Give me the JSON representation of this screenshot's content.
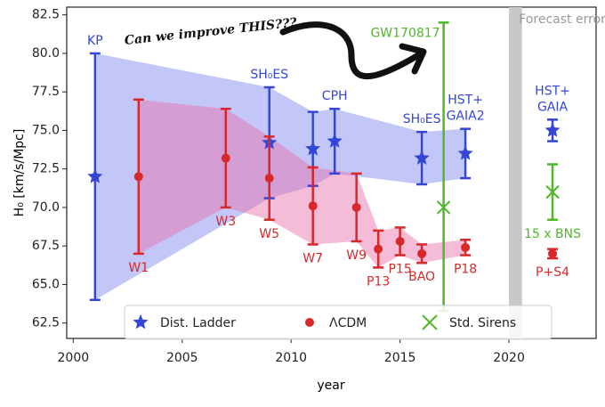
{
  "chart_data": {
    "type": "errorbar",
    "x_label": "year",
    "y_label": "H₀ [km/s/Mpc]",
    "xlim": [
      1999.7,
      2024
    ],
    "ylim": [
      61.5,
      83
    ],
    "xticks": [
      2000,
      2005,
      2010,
      2015,
      2020
    ],
    "yticks": [
      62.5,
      {
        "value": 65,
        "label": "65.0"
      },
      67.5,
      {
        "value": 70,
        "label": "70.0"
      },
      72.5,
      {
        "value": 75,
        "label": "75.0"
      },
      77.5,
      {
        "value": 80,
        "label": "80.0"
      },
      82.5
    ],
    "annotation": "Can we improve THIS???",
    "forecast_label": "Forecast errors",
    "series": [
      {
        "name": "Dist. Ladder",
        "color": "#3346d6",
        "marker": "star",
        "band_color": "#7b83f0",
        "x": [
          2001,
          2009,
          2011,
          2012,
          2016,
          2018,
          2022
        ],
        "values": [
          72,
          74.2,
          73.8,
          74.3,
          73.2,
          73.5,
          75
        ],
        "err": [
          8,
          3.6,
          2.4,
          2.1,
          1.7,
          1.6,
          0.7
        ],
        "labels": [
          [
            "KP"
          ],
          [
            "SH₀ES"
          ],
          null,
          [
            "CPH"
          ],
          [
            "SH₀ES"
          ],
          [
            "HST+",
            "GAIA2"
          ],
          [
            "HST+",
            "GAIA"
          ]
        ]
      },
      {
        "name": "ΛCDM",
        "color": "#d8282b",
        "marker": "circle",
        "band_color": "#e86aa6",
        "x": [
          2003,
          2007,
          2009,
          2011,
          2013,
          2014,
          2015,
          2016,
          2018,
          2022
        ],
        "values": [
          72,
          73.2,
          71.9,
          70.1,
          70,
          67.3,
          67.8,
          67,
          67.4,
          67
        ],
        "err": [
          5,
          3.2,
          2.7,
          2.5,
          2.2,
          1.2,
          0.9,
          0.6,
          0.5,
          0.3
        ],
        "labels": [
          [
            "W1"
          ],
          [
            "W3"
          ],
          [
            "W5"
          ],
          [
            "W7"
          ],
          [
            "W9"
          ],
          [
            "P13"
          ],
          [
            "P15"
          ],
          [
            "BAO"
          ],
          [
            "P18"
          ],
          [
            "P+S4"
          ]
        ]
      },
      {
        "name": "Std. Sirens",
        "color": "#4fb82a",
        "marker": "x",
        "x": [
          2017,
          2022
        ],
        "values": [
          70,
          71
        ],
        "err_low": [
          6.7,
          1.8
        ],
        "err_high": [
          12,
          1.8
        ],
        "labels": [
          [
            "GW170817"
          ],
          [
            "15 x BNS"
          ]
        ]
      }
    ]
  }
}
